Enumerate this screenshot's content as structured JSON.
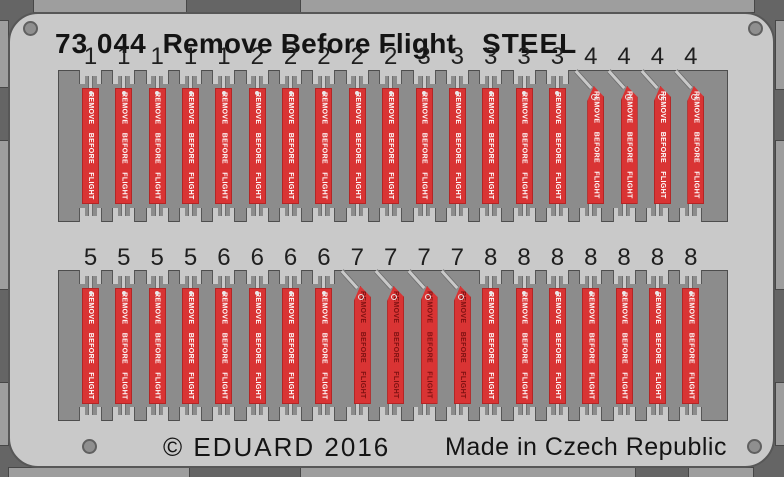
{
  "header": {
    "catalog_number": "73 044",
    "title": "Remove Before Flight",
    "material": "STEEL"
  },
  "footer": {
    "copyright": "© EDUARD 2016",
    "origin": "Made in Czech Republic"
  },
  "fret": {
    "flag_text": "REMOVE BEFORE FLIGHT",
    "rows": [
      {
        "groups": [
          {
            "part_number": "1",
            "count": 5,
            "attachment": "straight",
            "text_color": "white"
          },
          {
            "part_number": "2",
            "count": 5,
            "attachment": "straight",
            "text_color": "white"
          },
          {
            "part_number": "3",
            "count": 5,
            "attachment": "straight",
            "text_color": "white"
          },
          {
            "part_number": "4",
            "count": 4,
            "attachment": "angled",
            "text_color": "white"
          }
        ]
      },
      {
        "groups": [
          {
            "part_number": "5",
            "count": 4,
            "attachment": "straight",
            "text_color": "white"
          },
          {
            "part_number": "6",
            "count": 4,
            "attachment": "straight",
            "text_color": "white"
          },
          {
            "part_number": "7",
            "count": 4,
            "attachment": "angled",
            "text_color": "dark-red"
          },
          {
            "part_number": "8",
            "count": 7,
            "attachment": "straight",
            "text_color": "white"
          }
        ]
      }
    ],
    "colors": {
      "flag_red": "#d93434",
      "flag_text_white": "#ffffff",
      "flag_text_dark_red": "#7d1111",
      "plate_gray": "#c9c9c9",
      "background_gray": "#656565",
      "window_gray": "#8c8c8c"
    }
  }
}
